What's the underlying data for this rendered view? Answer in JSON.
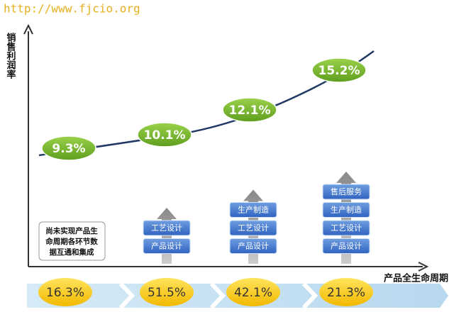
{
  "watermark": "http://www.fjcio.org",
  "y_axis_label": "销售利润率",
  "x_axis_label": "产品全生命周期",
  "profit_labels": [
    "9.3%",
    "10.1%",
    "12.1%",
    "15.2%"
  ],
  "stages": [
    {
      "note": [
        "尚未实现产品生",
        "命周期各环节数",
        "据互通和集成"
      ],
      "boxes": [],
      "share": "16.3%"
    },
    {
      "note": [],
      "boxes": [
        "工艺设计",
        "产品设计"
      ],
      "share": "51.5%"
    },
    {
      "note": [],
      "boxes": [
        "生产制造",
        "工艺设计",
        "产品设计"
      ],
      "share": "42.1%"
    },
    {
      "note": [],
      "boxes": [
        "售后服务",
        "生产制造",
        "工艺设计",
        "产品设计"
      ],
      "share": "21.3%"
    }
  ]
}
